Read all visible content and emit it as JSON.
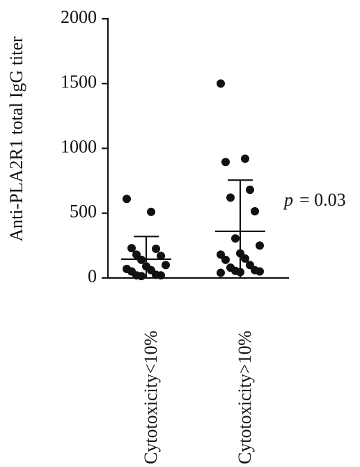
{
  "chart_data": {
    "type": "dotplot",
    "y_label": "Anti-PLA2R1 total IgG titer",
    "categories": [
      "Cytotoxicity<10%",
      "Cytotoxicity>10%"
    ],
    "points": [
      [
        610,
        510,
        230,
        225,
        180,
        170,
        140,
        100,
        90,
        70,
        60,
        50,
        25,
        20,
        20,
        15
      ],
      [
        1500,
        920,
        895,
        680,
        620,
        515,
        305,
        250,
        190,
        180,
        150,
        140,
        100,
        80,
        60,
        55,
        50,
        45,
        40
      ]
    ],
    "mean": [
      145,
      360
    ],
    "sd": [
      175,
      395
    ],
    "color": "#111111",
    "ylim": [
      0,
      2000
    ],
    "yticks": [
      0,
      500,
      1000,
      1500,
      2000
    ],
    "annotation": {
      "symbol": "p",
      "text": "= 0.03"
    }
  }
}
